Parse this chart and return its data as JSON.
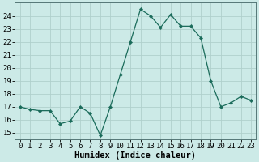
{
  "x": [
    0,
    1,
    2,
    3,
    4,
    5,
    6,
    7,
    8,
    9,
    10,
    11,
    12,
    13,
    14,
    15,
    16,
    17,
    18,
    19,
    20,
    21,
    22,
    23
  ],
  "y": [
    17.0,
    16.8,
    16.7,
    16.7,
    15.7,
    15.9,
    17.0,
    16.5,
    14.8,
    17.0,
    19.5,
    22.0,
    24.5,
    24.0,
    23.1,
    24.1,
    23.2,
    23.2,
    22.3,
    19.0,
    17.0,
    17.3,
    17.8,
    17.5
  ],
  "line_color": "#1a6b5a",
  "marker": "D",
  "markersize": 2.2,
  "bg_color": "#cceae7",
  "grid_color": "#b0d0cc",
  "xlabel": "Humidex (Indice chaleur)",
  "xlabel_fontsize": 7.5,
  "tick_fontsize": 6.5,
  "ylim": [
    14.5,
    25.0
  ],
  "xlim": [
    -0.5,
    23.5
  ],
  "yticks": [
    15,
    16,
    17,
    18,
    19,
    20,
    21,
    22,
    23,
    24
  ],
  "xticks": [
    0,
    1,
    2,
    3,
    4,
    5,
    6,
    7,
    8,
    9,
    10,
    11,
    12,
    13,
    14,
    15,
    16,
    17,
    18,
    19,
    20,
    21,
    22,
    23
  ]
}
